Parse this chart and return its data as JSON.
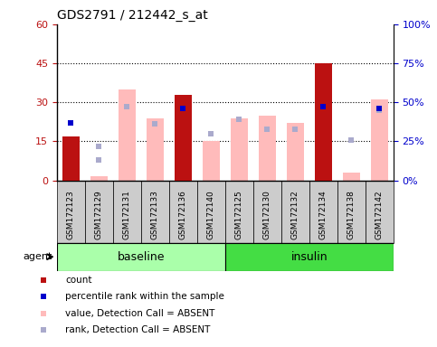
{
  "title": "GDS2791 / 212442_s_at",
  "samples": [
    "GSM172123",
    "GSM172129",
    "GSM172131",
    "GSM172133",
    "GSM172136",
    "GSM172140",
    "GSM172125",
    "GSM172130",
    "GSM172132",
    "GSM172134",
    "GSM172138",
    "GSM172142"
  ],
  "groups": [
    "baseline",
    "baseline",
    "baseline",
    "baseline",
    "baseline",
    "baseline",
    "insulin",
    "insulin",
    "insulin",
    "insulin",
    "insulin",
    "insulin"
  ],
  "count_values": [
    17,
    0,
    0,
    0,
    33,
    0,
    0,
    0,
    0,
    45,
    0,
    0
  ],
  "value_absent": [
    null,
    1.5,
    35,
    24,
    null,
    15,
    24,
    25,
    22,
    null,
    3,
    31
  ],
  "rank_absent": [
    null,
    13,
    47,
    36,
    null,
    30,
    39,
    33,
    33,
    null,
    26,
    45
  ],
  "percentile_rank": [
    37,
    22,
    null,
    null,
    46,
    null,
    null,
    null,
    null,
    47,
    null,
    46
  ],
  "percentile_rank_dark": [
    true,
    false,
    false,
    false,
    true,
    false,
    false,
    false,
    false,
    true,
    false,
    true
  ],
  "ylim_left": [
    0,
    60
  ],
  "ylim_right": [
    0,
    100
  ],
  "yticks_left": [
    0,
    15,
    30,
    45,
    60
  ],
  "yticks_right": [
    0,
    25,
    50,
    75,
    100
  ],
  "ytick_labels_left": [
    "0",
    "15",
    "30",
    "45",
    "60"
  ],
  "ytick_labels_right": [
    "0%",
    "25%",
    "50%",
    "75%",
    "100%"
  ],
  "bar_color_red": "#bb1111",
  "bar_color_pink": "#ffbbbb",
  "dot_color_dark_blue": "#0000cc",
  "dot_color_light_blue": "#aaaacc",
  "group_color_baseline": "#aaffaa",
  "group_color_insulin": "#44dd44",
  "sample_bg_color": "#cccccc",
  "legend_items": [
    {
      "color": "#bb1111",
      "label": "count",
      "marker": "s"
    },
    {
      "color": "#0000cc",
      "label": "percentile rank within the sample",
      "marker": "s"
    },
    {
      "color": "#ffbbbb",
      "label": "value, Detection Call = ABSENT",
      "marker": "s"
    },
    {
      "color": "#aaaacc",
      "label": "rank, Detection Call = ABSENT",
      "marker": "s"
    }
  ]
}
